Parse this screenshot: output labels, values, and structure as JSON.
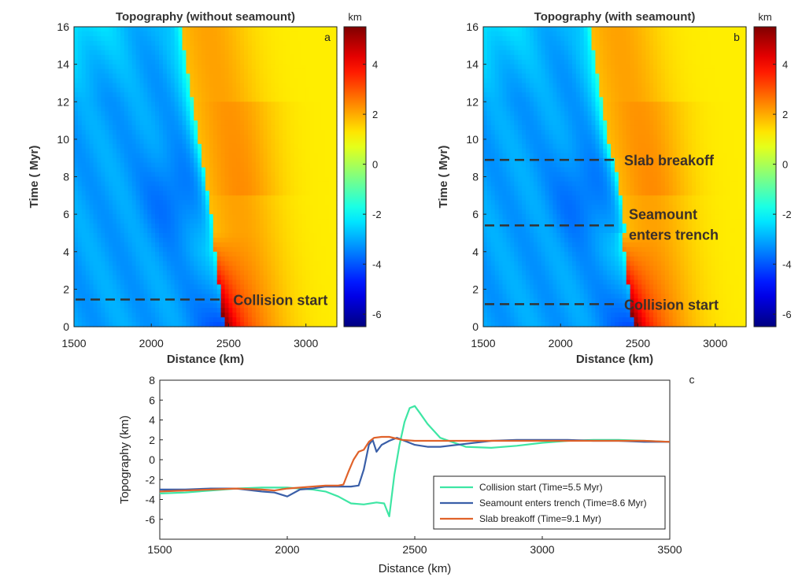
{
  "chart_data": [
    {
      "id": "a",
      "type": "heatmap",
      "title": "Topography (without seamount)",
      "panel_label": "a",
      "xlabel": "Distance (km)",
      "ylabel": "Time ( Myr)",
      "xlim": [
        1500,
        3200
      ],
      "ylim": [
        0,
        16
      ],
      "xticks": [
        "1500",
        "2000",
        "2500",
        "3000"
      ],
      "yticks": [
        "0",
        "2",
        "4",
        "6",
        "8",
        "10",
        "12",
        "14",
        "16"
      ],
      "colorbar": {
        "label": "km",
        "range": [
          -6.5,
          5.5
        ],
        "ticks": [
          "4",
          "2",
          "0",
          "-2",
          "-4",
          "-6"
        ]
      },
      "annotations": [
        {
          "text": "Collision start",
          "time": 1.45
        }
      ]
    },
    {
      "id": "b",
      "type": "heatmap",
      "title": "Topography (with seamount)",
      "panel_label": "b",
      "xlabel": "Distance (km)",
      "ylabel": "Time ( Myr)",
      "xlim": [
        1500,
        3200
      ],
      "ylim": [
        0,
        16
      ],
      "xticks": [
        "1500",
        "2000",
        "2500",
        "3000"
      ],
      "yticks": [
        "0",
        "2",
        "4",
        "6",
        "8",
        "10",
        "12",
        "14",
        "16"
      ],
      "colorbar": {
        "label": "km",
        "range": [
          -6.5,
          5.5
        ],
        "ticks": [
          "4",
          "2",
          "0",
          "-2",
          "-4",
          "-6"
        ]
      },
      "annotations": [
        {
          "text": "Slab breakoff",
          "time": 8.9
        },
        {
          "text": "Seamount",
          "text2": "enters trench",
          "time": 5.4
        },
        {
          "text": "Collision start",
          "time": 1.2
        }
      ]
    },
    {
      "id": "c",
      "type": "line",
      "panel_label": "c",
      "xlabel": "Distance (km)",
      "ylabel": "Topography (km)",
      "xlim": [
        1500,
        3500
      ],
      "ylim": [
        -8,
        8
      ],
      "xticks": [
        "1500",
        "2000",
        "2500",
        "3000",
        "3500"
      ],
      "yticks": [
        "8",
        "6",
        "4",
        "2",
        "0",
        "-2",
        "-4",
        "-6"
      ],
      "series": [
        {
          "name": "Collision start (Time=5.5 Myr)",
          "color": "#3ee6a4",
          "x": [
            1500,
            1600,
            1700,
            1800,
            1900,
            2000,
            2100,
            2150,
            2200,
            2250,
            2300,
            2350,
            2380,
            2400,
            2420,
            2440,
            2460,
            2480,
            2500,
            2520,
            2550,
            2600,
            2700,
            2800,
            2900,
            3000,
            3100,
            3200,
            3300,
            3400,
            3500
          ],
          "y": [
            -3.4,
            -3.3,
            -3.1,
            -2.9,
            -2.8,
            -2.8,
            -3.0,
            -3.2,
            -3.7,
            -4.4,
            -4.5,
            -4.3,
            -4.4,
            -5.7,
            -1.5,
            1.5,
            3.8,
            5.2,
            5.4,
            4.7,
            3.6,
            2.2,
            1.3,
            1.2,
            1.4,
            1.7,
            1.9,
            2.0,
            2.0,
            1.9,
            1.8
          ]
        },
        {
          "name": "Seamount enters trench (Time=8.6 Myr)",
          "color": "#3a5fa8",
          "x": [
            1500,
            1600,
            1700,
            1800,
            1900,
            1950,
            2000,
            2050,
            2100,
            2150,
            2200,
            2250,
            2280,
            2300,
            2320,
            2335,
            2350,
            2370,
            2400,
            2430,
            2460,
            2500,
            2550,
            2600,
            2700,
            2800,
            2900,
            3000,
            3100,
            3200,
            3300,
            3400,
            3500
          ],
          "y": [
            -3.0,
            -3.0,
            -2.9,
            -2.9,
            -3.2,
            -3.3,
            -3.7,
            -3.0,
            -2.9,
            -2.7,
            -2.7,
            -2.7,
            -2.6,
            -1.0,
            1.5,
            2.0,
            0.8,
            1.5,
            1.9,
            2.2,
            1.9,
            1.5,
            1.3,
            1.3,
            1.6,
            1.9,
            2.0,
            2.0,
            2.0,
            1.9,
            1.9,
            1.8,
            1.8
          ]
        },
        {
          "name": "Slab breakoff (Time=9.1 Myr)",
          "color": "#e0622a",
          "x": [
            1500,
            1600,
            1700,
            1800,
            1900,
            1950,
            2000,
            2050,
            2100,
            2150,
            2200,
            2220,
            2240,
            2260,
            2280,
            2300,
            2320,
            2340,
            2370,
            2400,
            2450,
            2500,
            2600,
            2700,
            2800,
            2900,
            3000,
            3100,
            3200,
            3300,
            3400,
            3500
          ],
          "y": [
            -3.2,
            -3.1,
            -3.0,
            -2.9,
            -3.0,
            -3.1,
            -2.9,
            -2.8,
            -2.7,
            -2.6,
            -2.6,
            -2.5,
            -1.2,
            0.0,
            0.8,
            1.0,
            1.8,
            2.2,
            2.3,
            2.3,
            2.0,
            1.9,
            1.9,
            1.9,
            1.9,
            1.9,
            1.9,
            1.9,
            1.9,
            1.9,
            1.9,
            1.8
          ]
        }
      ]
    }
  ]
}
